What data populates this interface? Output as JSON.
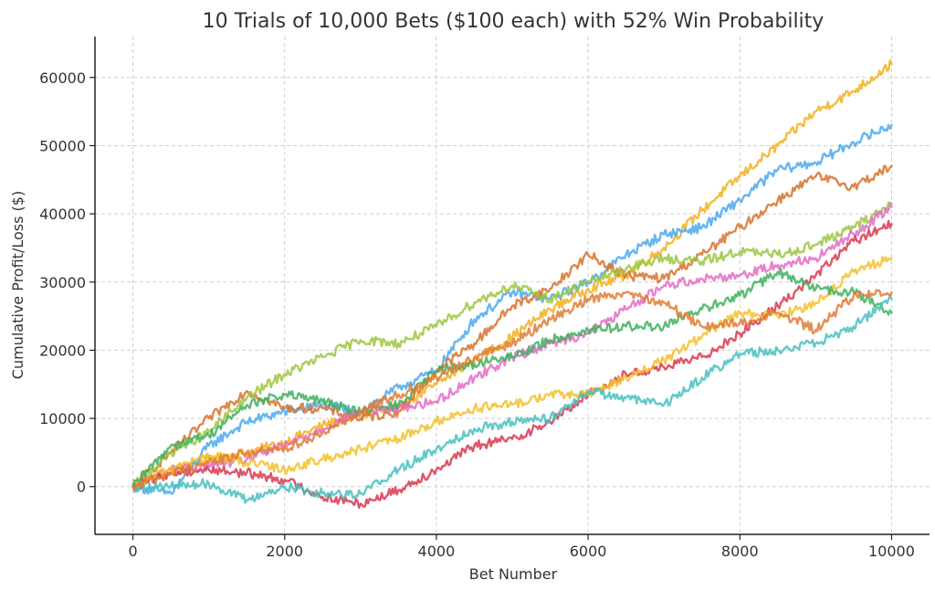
{
  "chart_data": {
    "type": "line",
    "title": "10 Trials of 10,000 Bets ($100 each) with 52% Win Probability",
    "xlabel": "Bet Number",
    "ylabel": "Cumulative Profit/Loss ($)",
    "xlim": [
      -500,
      10500
    ],
    "ylim": [
      -7000,
      66000
    ],
    "xticks": [
      0,
      2000,
      4000,
      6000,
      8000,
      10000
    ],
    "yticks": [
      0,
      10000,
      20000,
      30000,
      40000,
      50000,
      60000
    ],
    "grid": true,
    "series": [
      {
        "color": "#f2b01e",
        "x": [
          0,
          500,
          1000,
          1500,
          2000,
          2500,
          3000,
          3500,
          4000,
          4500,
          5000,
          5500,
          6000,
          6500,
          7000,
          7500,
          8000,
          8500,
          9000,
          9500,
          10000
        ],
        "y": [
          0,
          2500,
          4000,
          5000,
          6500,
          9000,
          10500,
          11500,
          15000,
          18500,
          22000,
          26000,
          29000,
          31000,
          35000,
          40500,
          45500,
          50000,
          55000,
          58000,
          62000
        ]
      },
      {
        "color": "#4aa9ee",
        "x": [
          0,
          500,
          1000,
          1500,
          2000,
          2500,
          3000,
          3500,
          4000,
          4500,
          5000,
          5500,
          6000,
          6500,
          7000,
          7500,
          8000,
          8500,
          9000,
          9500,
          10000
        ],
        "y": [
          0,
          -1000,
          6000,
          9500,
          11000,
          12000,
          11000,
          14500,
          17000,
          24500,
          28500,
          27500,
          30000,
          34000,
          37000,
          38000,
          42000,
          46500,
          47500,
          50500,
          53000
        ]
      },
      {
        "color": "#d9722b",
        "x": [
          0,
          500,
          1000,
          1500,
          2000,
          2500,
          3000,
          3500,
          4000,
          4500,
          5000,
          5500,
          6000,
          6500,
          7000,
          7500,
          8000,
          8500,
          9000,
          9500,
          10000
        ],
        "y": [
          0,
          5000,
          10000,
          14000,
          11500,
          11500,
          10000,
          11000,
          17000,
          21000,
          26500,
          29000,
          34000,
          31000,
          30500,
          34000,
          38000,
          42000,
          45500,
          44000,
          47000
        ]
      },
      {
        "color": "#9cc641",
        "x": [
          0,
          500,
          1000,
          1500,
          2000,
          2500,
          3000,
          3500,
          4000,
          4500,
          5000,
          5500,
          6000,
          6500,
          7000,
          7500,
          8000,
          8500,
          9000,
          9500,
          10000
        ],
        "y": [
          0,
          5000,
          8000,
          13000,
          16500,
          19000,
          21500,
          21000,
          23500,
          27000,
          29500,
          27500,
          30000,
          32000,
          33500,
          33000,
          34500,
          34000,
          35500,
          38000,
          41500
        ]
      },
      {
        "color": "#e46cc5",
        "x": [
          0,
          500,
          1000,
          1500,
          2000,
          2500,
          3000,
          3500,
          4000,
          4500,
          5000,
          5500,
          6000,
          6500,
          7000,
          7500,
          8000,
          8500,
          9000,
          9500,
          10000
        ],
        "y": [
          0,
          2500,
          3000,
          4000,
          6000,
          8500,
          11000,
          11500,
          12500,
          16000,
          19000,
          21000,
          22500,
          26000,
          29500,
          30500,
          31000,
          32500,
          33500,
          37000,
          41000
        ]
      },
      {
        "color": "#d8384f",
        "x": [
          0,
          500,
          1000,
          1500,
          2000,
          2500,
          3000,
          3500,
          4000,
          4500,
          5000,
          5500,
          6000,
          6500,
          7000,
          7500,
          8000,
          8500,
          9000,
          9500,
          10000
        ],
        "y": [
          0,
          2000,
          2500,
          2000,
          1000,
          -1500,
          -2500,
          -500,
          2500,
          6000,
          7000,
          9500,
          13500,
          16500,
          17500,
          19000,
          22500,
          26500,
          31000,
          36000,
          38500
        ]
      },
      {
        "color": "#f3c12a",
        "x": [
          0,
          500,
          1000,
          1500,
          2000,
          2500,
          3000,
          3500,
          4000,
          4500,
          5000,
          5500,
          6000,
          6500,
          7000,
          7500,
          8000,
          8500,
          9000,
          9500,
          10000
        ],
        "y": [
          0,
          2500,
          4500,
          3500,
          2500,
          4000,
          5500,
          7000,
          9500,
          11500,
          12000,
          13500,
          13500,
          16000,
          18500,
          22000,
          25500,
          25000,
          27000,
          31500,
          33500
        ]
      },
      {
        "color": "#3fb05e",
        "x": [
          0,
          500,
          1000,
          1500,
          2000,
          2500,
          3000,
          3500,
          4000,
          4500,
          5000,
          5500,
          6000,
          6500,
          7000,
          7500,
          8000,
          8500,
          9000,
          9500,
          10000
        ],
        "y": [
          0,
          6000,
          7500,
          12000,
          13500,
          12500,
          11000,
          12000,
          17000,
          18000,
          19000,
          21500,
          23000,
          23500,
          23500,
          26000,
          28000,
          31500,
          29000,
          28500,
          25500
        ]
      },
      {
        "color": "#48c0bf",
        "x": [
          0,
          500,
          1000,
          1500,
          2000,
          2500,
          3000,
          3500,
          4000,
          4500,
          5000,
          5500,
          6000,
          6500,
          7000,
          7500,
          8000,
          8500,
          9000,
          9500,
          10000
        ],
        "y": [
          0,
          0,
          500,
          -2000,
          0,
          -1000,
          -1000,
          2500,
          5500,
          8500,
          9500,
          10000,
          14000,
          13000,
          12000,
          16000,
          19500,
          20000,
          21000,
          23500,
          27500
        ]
      },
      {
        "color": "#e07b35",
        "x": [
          0,
          500,
          1000,
          1500,
          2000,
          2500,
          3000,
          3500,
          4000,
          4500,
          5000,
          5500,
          6000,
          6500,
          7000,
          7500,
          8000,
          8500,
          9000,
          9500,
          10000
        ],
        "y": [
          0,
          2000,
          3500,
          5000,
          5500,
          8000,
          11000,
          13500,
          16000,
          19000,
          21000,
          24500,
          27500,
          28500,
          27000,
          23500,
          24000,
          25500,
          23000,
          28000,
          28500
        ]
      }
    ]
  }
}
